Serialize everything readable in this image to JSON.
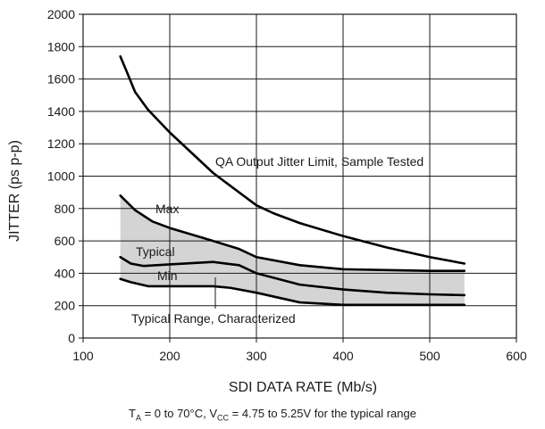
{
  "chart_data": {
    "type": "line",
    "xlabel": "SDI DATA RATE (Mb/s)",
    "ylabel": "JITTER (ps p-p)",
    "xlim": [
      100,
      600
    ],
    "ylim": [
      0,
      2000
    ],
    "x_ticks": [
      100,
      200,
      300,
      400,
      500,
      600
    ],
    "y_ticks": [
      0,
      200,
      400,
      600,
      800,
      1000,
      1200,
      1400,
      1600,
      1800,
      2000
    ],
    "grid": true,
    "series": [
      {
        "name": "QA Output Jitter Limit, Sample Tested",
        "x": [
          143,
          150,
          160,
          175,
          200,
          250,
          300,
          320,
          350,
          400,
          450,
          500,
          540
        ],
        "y": [
          1740,
          1650,
          1520,
          1410,
          1270,
          1020,
          820,
          770,
          710,
          630,
          560,
          500,
          460
        ]
      },
      {
        "name": "Max",
        "x": [
          143,
          160,
          180,
          200,
          250,
          280,
          300,
          350,
          400,
          450,
          500,
          540
        ],
        "y": [
          880,
          790,
          720,
          680,
          600,
          550,
          500,
          450,
          425,
          420,
          415,
          415
        ]
      },
      {
        "name": "Typical",
        "x": [
          143,
          155,
          170,
          200,
          250,
          280,
          300,
          350,
          400,
          450,
          500,
          540
        ],
        "y": [
          500,
          460,
          445,
          455,
          470,
          450,
          400,
          330,
          300,
          280,
          270,
          265
        ]
      },
      {
        "name": "Min",
        "x": [
          143,
          155,
          175,
          200,
          250,
          270,
          300,
          350,
          400,
          450,
          500,
          540
        ],
        "y": [
          365,
          345,
          320,
          320,
          320,
          310,
          280,
          220,
          205,
          205,
          205,
          205
        ]
      }
    ],
    "shaded_region": {
      "label": "Typical Range, Characterized",
      "upper": "Max",
      "lower": "Min",
      "color": "#d4d4d4"
    },
    "annotations": {
      "qa_limit": "QA Output Jitter Limit, Sample Tested",
      "max": "Max",
      "typical": "Typical",
      "min": "Min",
      "typical_range": "Typical Range, Characterized"
    },
    "footnote": {
      "ta_sub": "A",
      "ta_value": " = 0 to 70°C, V",
      "vcc_sub": "CC",
      "rest": " = 4.75 to 5.25V for the typical range"
    }
  }
}
